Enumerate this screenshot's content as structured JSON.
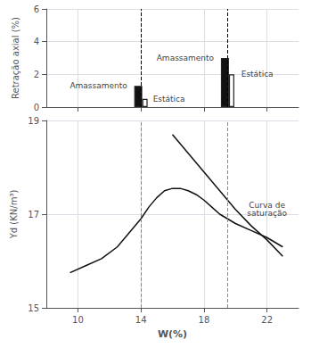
{
  "chart_data": [
    {
      "type": "bar",
      "x": [
        14,
        19.5
      ],
      "series": [
        {
          "color": "#111111",
          "values": [
            1.3,
            3.0
          ]
        },
        {
          "color": "#ffffff",
          "values": [
            0.5,
            2.0
          ]
        }
      ],
      "xlim": [
        8,
        24
      ],
      "xticks": [
        10,
        14,
        18,
        22
      ],
      "ylim": [
        0,
        6
      ],
      "yticks": [
        0,
        2,
        4,
        6
      ],
      "ylabel": "Retração axial (%)",
      "grid": true,
      "tick_labels": "y",
      "reference_lines_x": [
        14,
        19.5
      ],
      "annotations": [
        {
          "text": "Amassamento",
          "x": 13.7,
          "y": 1.3
        },
        {
          "text": "Estática",
          "x": 14.2,
          "y": 0.5
        },
        {
          "text": "Amassamento",
          "x": 19.2,
          "y": 3.0
        },
        {
          "text": "Estática",
          "x": 19.8,
          "y": 2.0
        }
      ]
    },
    {
      "type": "line",
      "series": [
        {
          "color": "#111111",
          "x": [
            9.5,
            10.5,
            11.5,
            12.5,
            13.5,
            14.0,
            14.5,
            15.0,
            15.5,
            16.0,
            16.5,
            17.0,
            17.5,
            18.0,
            18.5,
            19.0,
            20.0,
            21.0,
            22.0,
            23.0
          ],
          "values": [
            15.75,
            15.9,
            16.05,
            16.3,
            16.7,
            16.9,
            17.15,
            17.35,
            17.5,
            17.55,
            17.55,
            17.5,
            17.42,
            17.3,
            17.15,
            17.0,
            16.8,
            16.65,
            16.5,
            16.3
          ]
        },
        {
          "color": "#111111",
          "x": [
            16.0,
            17.0,
            18.0,
            19.0,
            19.5,
            20.0,
            21.0,
            22.0,
            23.0
          ],
          "values": [
            18.7,
            18.3,
            17.9,
            17.5,
            17.3,
            17.1,
            16.75,
            16.45,
            16.1
          ]
        }
      ],
      "xlim": [
        8,
        24
      ],
      "xticks": [
        10,
        14,
        18,
        22
      ],
      "ylim": [
        15,
        19
      ],
      "yticks": [
        15,
        17,
        19
      ],
      "xlabel": "W(%)",
      "ylabel": "Yd (KN/m³)",
      "grid": true,
      "reference_lines_x": [
        14,
        19.5
      ],
      "annotations": [
        {
          "text": "Curva de\nsaturação",
          "x": 22.0,
          "y": 16.55
        }
      ]
    }
  ]
}
